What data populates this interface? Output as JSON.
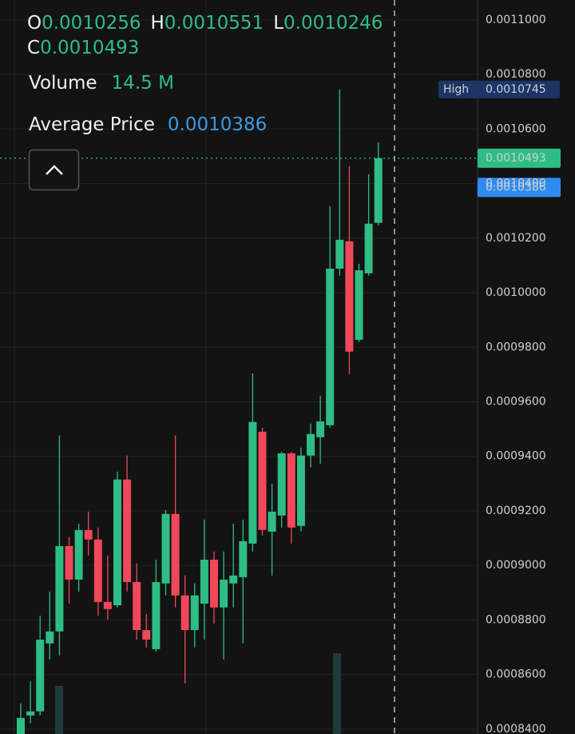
{
  "chart_data": {
    "type": "candlestick",
    "up_color": "#2ebd85",
    "down_color": "#f0475a",
    "ylim": [
      0.0011073,
      0.0008382
    ],
    "yticks": [
      {
        "value": 0.0011,
        "label": "0.0011000"
      },
      {
        "value": 0.00108,
        "label": "0.0010800"
      },
      {
        "value": 0.00106,
        "label": "0.0010600"
      },
      {
        "value": 0.00104,
        "label": "0.0010400"
      },
      {
        "value": 0.00102,
        "label": "0.0010200"
      },
      {
        "value": 0.001,
        "label": "0.0010000"
      },
      {
        "value": 0.00098,
        "label": "0.0009800"
      },
      {
        "value": 0.00096,
        "label": "0.0009600"
      },
      {
        "value": 0.00094,
        "label": "0.0009400"
      },
      {
        "value": 0.00092,
        "label": "0.0009200"
      },
      {
        "value": 0.0009,
        "label": "0.0009000"
      },
      {
        "value": 0.00088,
        "label": "0.0008800"
      },
      {
        "value": 0.00086,
        "label": "0.0008600"
      },
      {
        "value": 0.00084,
        "label": "0.0008400"
      }
    ],
    "grid": true,
    "open": [
      0.0008382,
      0.000845,
      0.0008465,
      0.0008714,
      0.0008758,
      0.0009071,
      0.0008948,
      0.000913,
      0.0009095,
      0.0008866,
      0.0008854,
      0.0009315,
      0.0008939,
      0.0008763,
      0.0008693,
      0.0008934,
      0.0009189,
      0.000889,
      0.0008763,
      0.000886,
      0.0009021,
      0.0008846,
      0.0008934,
      0.0008957,
      0.000908,
      0.000949,
      0.0009124,
      0.0009183,
      0.0009411,
      0.0009145,
      0.0009403,
      0.000947,
      0.0009514,
      0.0010088,
      0.0010188,
      0.0009827,
      0.0010071,
      0.0010256
    ],
    "high": [
      0.0008494,
      0.0008576,
      0.0008816,
      0.0008904,
      0.0009476,
      0.0009104,
      0.0009153,
      0.0009197,
      0.0009139,
      0.0009036,
      0.0009344,
      0.0009403,
      0.0009007,
      0.0008822,
      0.0009021,
      0.0009203,
      0.0009476,
      0.0008963,
      0.0008934,
      0.0009168,
      0.0009051,
      0.0009051,
      0.0009153,
      0.0009168,
      0.0009704,
      0.0009505,
      0.00093,
      0.0009417,
      0.0009417,
      0.0009432,
      0.000952,
      0.0009622,
      0.0010317,
      0.0010745,
      0.0010464,
      0.0010106,
      0.0010434,
      0.0010551
    ],
    "low": [
      0.0008375,
      0.0008421,
      0.000845,
      0.0008655,
      0.000867,
      0.000886,
      0.0008904,
      0.0009036,
      0.0008816,
      0.0008802,
      0.0008846,
      0.0008904,
      0.0008728,
      0.0008699,
      0.0008684,
      0.000889,
      0.0008846,
      0.0008567,
      0.0008699,
      0.0008728,
      0.0008787,
      0.0008655,
      0.0008846,
      0.0008714,
      0.0009051,
      0.0009109,
      0.0008963,
      0.0009139,
      0.000908,
      0.0009124,
      0.0009359,
      0.0009373,
      0.0009505,
      0.0010062,
      0.0009702,
      0.0009819,
      0.0010062,
      0.0010246
    ],
    "close": [
      0.0008441,
      0.0008465,
      0.0008728,
      0.0008758,
      0.0009071,
      0.0008948,
      0.000913,
      0.0009095,
      0.0008866,
      0.000884,
      0.0009315,
      0.0008939,
      0.0008763,
      0.0008728,
      0.0008939,
      0.0009189,
      0.000889,
      0.0008763,
      0.000889,
      0.0009021,
      0.0008846,
      0.0008948,
      0.0008963,
      0.0009089,
      0.0009526,
      0.000913,
      0.0009197,
      0.0009411,
      0.0009139,
      0.0009403,
      0.0009482,
      0.0009528,
      0.0010088,
      0.0010194,
      0.0009784,
      0.0010082,
      0.0010253,
      0.0010493
    ],
    "legend": {
      "open_label": "O",
      "high_label": "H",
      "low_label": "L",
      "close_label": "C",
      "volume_label": "Volume",
      "volume": "14.5 M",
      "average_label": "Average Price",
      "average": 0.0010386
    },
    "high_badge": "High"
  }
}
